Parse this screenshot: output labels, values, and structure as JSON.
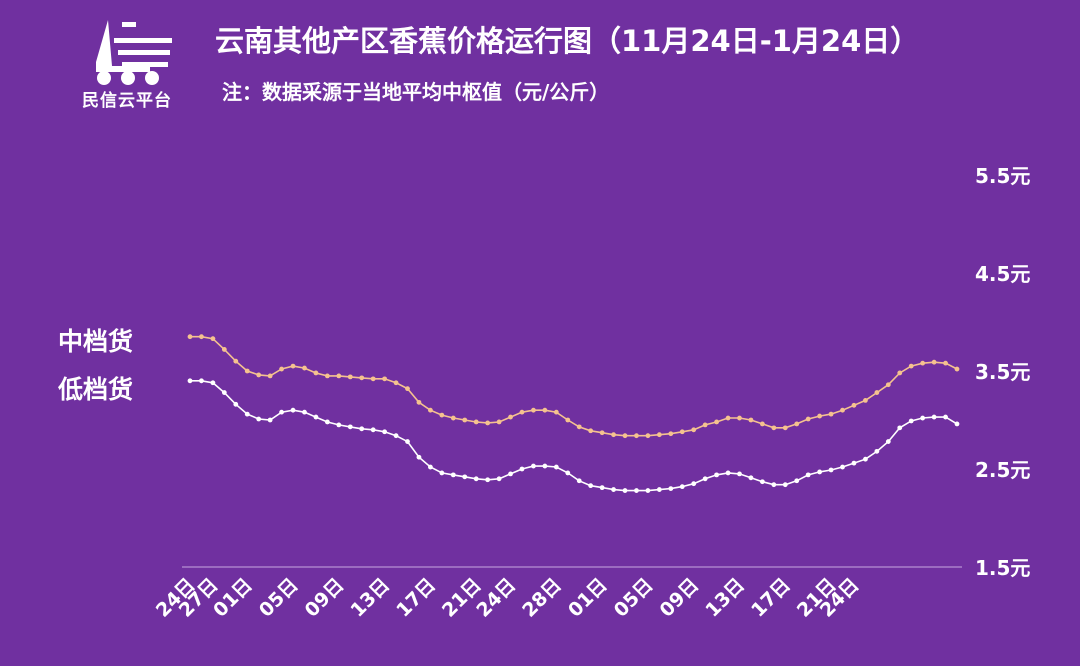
{
  "header": {
    "logo_text": "民信云平台",
    "title": "云南其他产区香蕉价格运行图（11月24日-1月24日）",
    "subtitle": "注：数据采源于当地平均中枢值（元/公斤）"
  },
  "legend": [
    "中档货",
    "低档货"
  ],
  "colors": {
    "background": "#7030a0",
    "mid": "#f5c28f",
    "low": "#ffffff",
    "axis": "#c8a8e0"
  },
  "chart_data": {
    "type": "line",
    "ylim": [
      1.5,
      5.5
    ],
    "y_ticks": [
      "1.5元",
      "2.5元",
      "3.5元",
      "4.5元",
      "5.5元"
    ],
    "y_tick_values": [
      1.5,
      2.5,
      3.5,
      4.5,
      5.5
    ],
    "x_tick_labels": [
      "24日",
      "27日",
      "01日",
      "05日",
      "09日",
      "13日",
      "17日",
      "21日",
      "24日",
      "28日",
      "01日",
      "05日",
      "09日",
      "13日",
      "17日",
      "21日",
      "24日"
    ],
    "x_tick_index": [
      0,
      2,
      5,
      9,
      13,
      17,
      21,
      25,
      28,
      32,
      36,
      40,
      44,
      48,
      52,
      56,
      58
    ],
    "series": [
      {
        "name": "中档货",
        "values": [
          3.85,
          3.85,
          3.83,
          3.72,
          3.6,
          3.5,
          3.46,
          3.45,
          3.52,
          3.55,
          3.53,
          3.48,
          3.45,
          3.45,
          3.44,
          3.43,
          3.42,
          3.42,
          3.38,
          3.32,
          3.18,
          3.1,
          3.05,
          3.02,
          3.0,
          2.98,
          2.97,
          2.98,
          3.03,
          3.08,
          3.1,
          3.1,
          3.08,
          3.0,
          2.93,
          2.89,
          2.87,
          2.85,
          2.84,
          2.84,
          2.84,
          2.85,
          2.86,
          2.88,
          2.9,
          2.95,
          2.98,
          3.02,
          3.02,
          3.0,
          2.96,
          2.92,
          2.92,
          2.96,
          3.01,
          3.04,
          3.06,
          3.1,
          3.15,
          3.2,
          3.28,
          3.36,
          3.48,
          3.55,
          3.58,
          3.59,
          3.58,
          3.52
        ]
      },
      {
        "name": "低档货",
        "values": [
          3.4,
          3.4,
          3.38,
          3.28,
          3.16,
          3.06,
          3.01,
          3.0,
          3.08,
          3.1,
          3.08,
          3.03,
          2.98,
          2.95,
          2.93,
          2.91,
          2.9,
          2.88,
          2.84,
          2.78,
          2.62,
          2.52,
          2.46,
          2.44,
          2.42,
          2.4,
          2.39,
          2.4,
          2.45,
          2.5,
          2.53,
          2.53,
          2.52,
          2.46,
          2.38,
          2.33,
          2.31,
          2.29,
          2.28,
          2.28,
          2.28,
          2.29,
          2.3,
          2.32,
          2.35,
          2.4,
          2.44,
          2.46,
          2.45,
          2.41,
          2.37,
          2.34,
          2.34,
          2.38,
          2.44,
          2.47,
          2.49,
          2.52,
          2.56,
          2.6,
          2.68,
          2.78,
          2.92,
          2.99,
          3.02,
          3.03,
          3.03,
          2.96
        ]
      }
    ]
  }
}
